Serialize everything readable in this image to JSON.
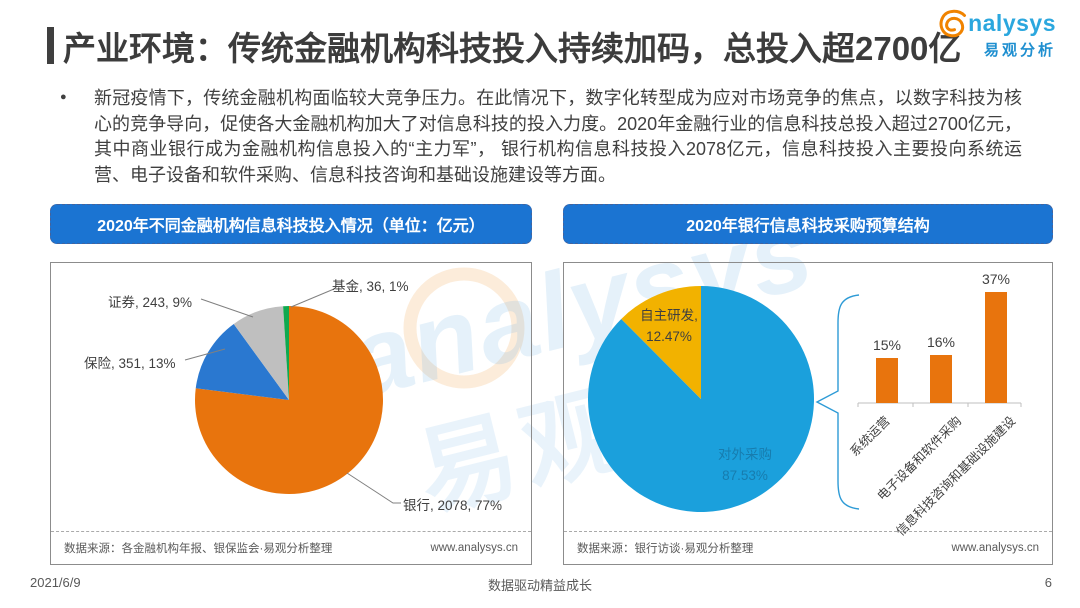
{
  "header": {
    "title": "产业环境：传统金融机构科技投入持续加码，总投入超2700亿",
    "logo": {
      "brand": "nalysys",
      "brand_cn": "易观分析"
    }
  },
  "summary": {
    "bullet": "●",
    "text": "新冠疫情下，传统金融机构面临较大竞争压力。在此情况下，数字化转型成为应对市场竞争的焦点，以数字科技为核心的竞争导向，促使各大金融机构加大了对信息科技的投入力度。2020年金融行业的信息科技总投入超过2700亿元，其中商业银行成为金融机构信息投入的“主力军”， 银行机构信息科技投入2078亿元，信息科技投入主要投向系统运营、电子设备和软件采购、信息科技咨询和基础设施建设等方面。"
  },
  "panels": {
    "left": {
      "title": "2020年不同金融机构信息科技投入情况（单位：亿元）",
      "source": "数据来源：各金融机构年报、银保监会·易观分析整理",
      "website": "www.analysys.cn"
    },
    "right": {
      "title": "2020年银行信息科技采购预算结构",
      "source": "数据来源：银行访谈·易观分析整理",
      "website": "www.analysys.cn"
    }
  },
  "chart_data": [
    {
      "type": "pie",
      "title": "2020年不同金融机构信息科技投入情况",
      "unit": "亿元",
      "label_format": "名称, 投入额, 占比%",
      "slices": [
        {
          "label": "银行",
          "value": 2078,
          "percent": 77,
          "color": "#E8740D",
          "label_text": "银行, 2078, 77%"
        },
        {
          "label": "保险",
          "value": 351,
          "percent": 13,
          "color": "#2A78D0",
          "label_text": "保险, 351, 13%"
        },
        {
          "label": "证券",
          "value": 243,
          "percent": 9,
          "color": "#BFBFBF",
          "label_text": "证券, 243, 9%"
        },
        {
          "label": "基金",
          "value": 36,
          "percent": 1,
          "color": "#0FA94F",
          "label_text": "基金, 36, 1%"
        }
      ]
    },
    {
      "type": "pie",
      "title": "2020年银行信息科技采购预算结构",
      "slices": [
        {
          "label": "对外采购",
          "percent": 87.53,
          "color": "#1BA0DC",
          "label_lines": [
            "对外采购",
            "87.53%"
          ]
        },
        {
          "label": "自主研发",
          "percent": 12.47,
          "color": "#F2B200",
          "label_lines": [
            "自主研发,",
            "12.47%"
          ]
        }
      ]
    },
    {
      "type": "bar",
      "categories": [
        "系统运营",
        "电子设备和软件采购",
        "信息科技咨询和基础设施建设"
      ],
      "values": [
        15,
        16,
        37
      ],
      "value_labels": [
        "15%",
        "16%",
        "37%"
      ],
      "bar_color": "#E8740D",
      "ylim": [
        0,
        40
      ],
      "grid": false
    }
  ],
  "watermark": {
    "text_en": "analysys",
    "text_cn": "易观"
  },
  "footer": {
    "date": "2021/6/9",
    "slogan": "数据驱动精益成长",
    "page": "6"
  }
}
